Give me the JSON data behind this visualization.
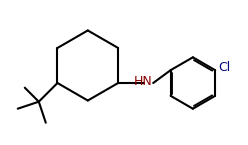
{
  "background_color": "#ffffff",
  "line_color": "#000000",
  "hn_color": "#8B4513",
  "cl_color": "#000000",
  "line_width": 1.5,
  "figsize": [
    2.48,
    1.45
  ],
  "dpi": 100
}
